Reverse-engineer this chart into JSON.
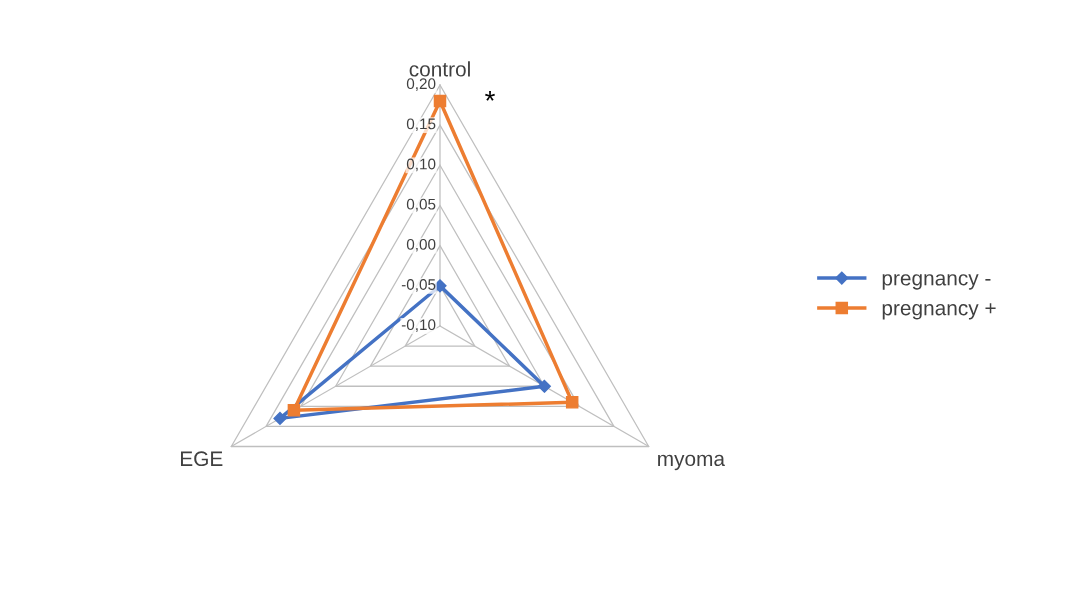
{
  "chart_data": {
    "type": "radar",
    "categories": [
      "control",
      "myoma",
      "EGE"
    ],
    "series": [
      {
        "name": "pregnancy -",
        "color": "#4472c4",
        "marker": "diamond",
        "values": [
          -0.05,
          0.05,
          0.13
        ]
      },
      {
        "name": "pregnancy +",
        "color": "#ed7d31",
        "marker": "square",
        "values": [
          0.18,
          0.09,
          0.11
        ]
      }
    ],
    "ylim": [
      -0.1,
      0.2
    ],
    "yticks": [
      {
        "value": -0.1,
        "label": "-0,10"
      },
      {
        "value": -0.05,
        "label": "-0,05"
      },
      {
        "value": 0.0,
        "label": "0,00"
      },
      {
        "value": 0.05,
        "label": "0,05"
      },
      {
        "value": 0.1,
        "label": "0,10"
      },
      {
        "value": 0.15,
        "label": "0,15"
      },
      {
        "value": 0.2,
        "label": "0,20"
      }
    ],
    "grid": true,
    "legend": "right",
    "line_style": "solid",
    "annotations": [
      "*"
    ]
  }
}
